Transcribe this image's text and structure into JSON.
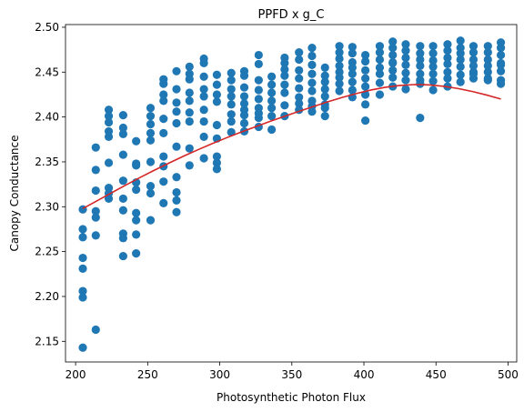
{
  "chart_data": {
    "type": "scatter",
    "title": "PPFD x g_C",
    "xlabel": "Photosynthetic Photon Flux",
    "ylabel": "Canopy Conductance",
    "xlim": [
      193,
      506
    ],
    "ylim": [
      2.127,
      2.503
    ],
    "xticks": [
      200,
      250,
      300,
      350,
      400,
      450,
      500
    ],
    "yticks": [
      2.15,
      2.2,
      2.25,
      2.3,
      2.35,
      2.4,
      2.45,
      2.5
    ],
    "ytick_decimals": 2,
    "grid": false,
    "colors": {
      "points": "#1f77b4",
      "fit": "#d62728"
    },
    "series": [
      {
        "kind": "points",
        "x": [
          205,
          205,
          205,
          205,
          205,
          205,
          205,
          205,
          214,
          214,
          214,
          214,
          214,
          214,
          214,
          223,
          223,
          223,
          223,
          223,
          223,
          223,
          223,
          223,
          233,
          233,
          233,
          233,
          233,
          233,
          233,
          233,
          233,
          233,
          242,
          242,
          242,
          242,
          242,
          242,
          242,
          242,
          242,
          252,
          252,
          252,
          252,
          252,
          252,
          252,
          252,
          252,
          261,
          261,
          261,
          261,
          261,
          261,
          261,
          261,
          261,
          261,
          270,
          270,
          270,
          270,
          270,
          270,
          270,
          270,
          270,
          270,
          279,
          279,
          279,
          279,
          279,
          279,
          279,
          279,
          279,
          289,
          289,
          289,
          289,
          289,
          289,
          289,
          289,
          289,
          298,
          298,
          298,
          298,
          298,
          298,
          298,
          298,
          298,
          308,
          308,
          308,
          308,
          308,
          308,
          308,
          308,
          317,
          317,
          317,
          317,
          317,
          317,
          317,
          317,
          317,
          327,
          327,
          327,
          327,
          327,
          327,
          327,
          327,
          327,
          336,
          336,
          336,
          336,
          336,
          336,
          336,
          345,
          345,
          345,
          345,
          345,
          345,
          345,
          345,
          355,
          355,
          355,
          355,
          355,
          355,
          355,
          355,
          364,
          364,
          364,
          364,
          364,
          364,
          364,
          364,
          364,
          373,
          373,
          373,
          373,
          373,
          373,
          373,
          373,
          383,
          383,
          383,
          383,
          383,
          383,
          383,
          383,
          392,
          392,
          392,
          392,
          392,
          392,
          392,
          392,
          401,
          401,
          401,
          401,
          401,
          401,
          401,
          401,
          411,
          411,
          411,
          411,
          411,
          411,
          411,
          420,
          420,
          420,
          420,
          420,
          420,
          420,
          420,
          429,
          429,
          429,
          429,
          429,
          429,
          429,
          439,
          439,
          439,
          439,
          439,
          439,
          439,
          439,
          448,
          448,
          448,
          448,
          448,
          448,
          448,
          458,
          458,
          458,
          458,
          458,
          458,
          458,
          467,
          467,
          467,
          467,
          467,
          467,
          467,
          476,
          476,
          476,
          476,
          476,
          476,
          476,
          486,
          486,
          486,
          486,
          486,
          486,
          486,
          495,
          495,
          495,
          495,
          495,
          495,
          495,
          495
        ],
        "y": [
          2.297,
          2.275,
          2.266,
          2.243,
          2.231,
          2.206,
          2.199,
          2.143,
          2.366,
          2.341,
          2.295,
          2.288,
          2.268,
          2.163,
          2.318,
          2.408,
          2.401,
          2.394,
          2.384,
          2.378,
          2.349,
          2.321,
          2.315,
          2.309,
          2.402,
          2.388,
          2.381,
          2.358,
          2.329,
          2.309,
          2.296,
          2.27,
          2.265,
          2.245,
          2.373,
          2.348,
          2.346,
          2.327,
          2.319,
          2.293,
          2.285,
          2.269,
          2.248,
          2.41,
          2.401,
          2.392,
          2.382,
          2.374,
          2.35,
          2.323,
          2.315,
          2.285,
          2.442,
          2.437,
          2.425,
          2.418,
          2.398,
          2.382,
          2.356,
          2.345,
          2.328,
          2.304,
          2.451,
          2.431,
          2.416,
          2.406,
          2.393,
          2.367,
          2.333,
          2.316,
          2.307,
          2.294,
          2.456,
          2.448,
          2.442,
          2.427,
          2.418,
          2.405,
          2.395,
          2.365,
          2.346,
          2.465,
          2.46,
          2.445,
          2.431,
          2.423,
          2.408,
          2.395,
          2.378,
          2.354,
          2.447,
          2.436,
          2.425,
          2.417,
          2.391,
          2.376,
          2.356,
          2.349,
          2.342,
          2.449,
          2.441,
          2.431,
          2.423,
          2.414,
          2.403,
          2.395,
          2.383,
          2.451,
          2.446,
          2.433,
          2.423,
          2.415,
          2.408,
          2.402,
          2.393,
          2.384,
          2.469,
          2.459,
          2.441,
          2.43,
          2.42,
          2.41,
          2.404,
          2.399,
          2.389,
          2.445,
          2.436,
          2.427,
          2.418,
          2.41,
          2.401,
          2.386,
          2.466,
          2.46,
          2.453,
          2.446,
          2.436,
          2.427,
          2.413,
          2.401,
          2.472,
          2.464,
          2.452,
          2.443,
          2.432,
          2.422,
          2.415,
          2.408,
          2.477,
          2.468,
          2.458,
          2.448,
          2.438,
          2.429,
          2.418,
          2.412,
          2.406,
          2.455,
          2.446,
          2.439,
          2.431,
          2.423,
          2.414,
          2.41,
          2.401,
          2.479,
          2.472,
          2.465,
          2.457,
          2.45,
          2.444,
          2.437,
          2.429,
          2.478,
          2.471,
          2.461,
          2.455,
          2.448,
          2.439,
          2.43,
          2.422,
          2.469,
          2.462,
          2.452,
          2.443,
          2.434,
          2.425,
          2.414,
          2.396,
          2.479,
          2.472,
          2.464,
          2.455,
          2.448,
          2.438,
          2.425,
          2.484,
          2.477,
          2.469,
          2.461,
          2.452,
          2.444,
          2.434,
          2.46,
          2.481,
          2.474,
          2.466,
          2.458,
          2.449,
          2.441,
          2.431,
          2.479,
          2.471,
          2.464,
          2.457,
          2.448,
          2.441,
          2.437,
          2.399,
          2.479,
          2.471,
          2.463,
          2.456,
          2.448,
          2.44,
          2.43,
          2.481,
          2.474,
          2.466,
          2.459,
          2.45,
          2.443,
          2.434,
          2.485,
          2.477,
          2.471,
          2.464,
          2.456,
          2.447,
          2.439,
          2.479,
          2.472,
          2.464,
          2.457,
          2.45,
          2.443,
          2.448,
          2.479,
          2.472,
          2.464,
          2.457,
          2.45,
          2.443,
          2.441,
          2.483,
          2.477,
          2.469,
          2.46,
          2.451,
          2.441,
          2.437,
          2.458
        ]
      },
      {
        "kind": "fit",
        "x": [
          205,
          215,
          225,
          235,
          245,
          255,
          265,
          275,
          285,
          295,
          305,
          315,
          325,
          335,
          345,
          355,
          365,
          375,
          385,
          395,
          405,
          415,
          425,
          435,
          445,
          455,
          465,
          475,
          485,
          495
        ],
        "y": [
          2.298,
          2.3067,
          2.3156,
          2.3243,
          2.3328,
          2.341,
          2.3488,
          2.3564,
          2.3636,
          2.3705,
          2.377,
          2.3833,
          2.3893,
          2.3952,
          2.4008,
          2.4063,
          2.4117,
          2.417,
          2.4218,
          2.4262,
          2.4301,
          2.4331,
          2.4352,
          2.4361,
          2.4358,
          2.4343,
          2.4318,
          2.4285,
          2.4245,
          2.42
        ]
      }
    ]
  }
}
